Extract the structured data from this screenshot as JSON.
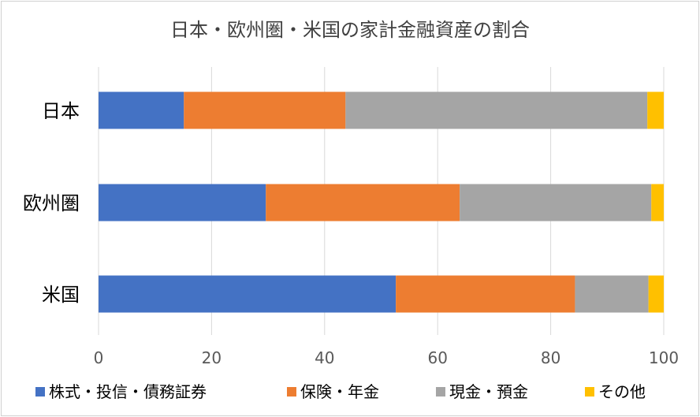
{
  "chart_data": {
    "type": "bar",
    "orientation": "horizontal",
    "stacked": true,
    "title": "日本・欧州圏・米国の家計金融資産の割合",
    "categories": [
      "日本",
      "欧州圏",
      "米国"
    ],
    "series": [
      {
        "name": "株式・投信・債務証券",
        "color": "#4472C4",
        "values": [
          15.1,
          29.6,
          52.6
        ]
      },
      {
        "name": "保険・年金",
        "color": "#ED7D31",
        "values": [
          28.6,
          34.3,
          31.7
        ]
      },
      {
        "name": "現金・預金",
        "color": "#A5A5A5",
        "values": [
          53.4,
          33.9,
          13.0
        ]
      },
      {
        "name": "その他",
        "color": "#FFC000",
        "values": [
          2.9,
          2.2,
          2.7
        ]
      }
    ],
    "xlim": [
      0,
      100
    ],
    "xticks": [
      "0",
      "20",
      "40",
      "60",
      "80",
      "100"
    ],
    "grid": true,
    "legend_position": "bottom"
  }
}
